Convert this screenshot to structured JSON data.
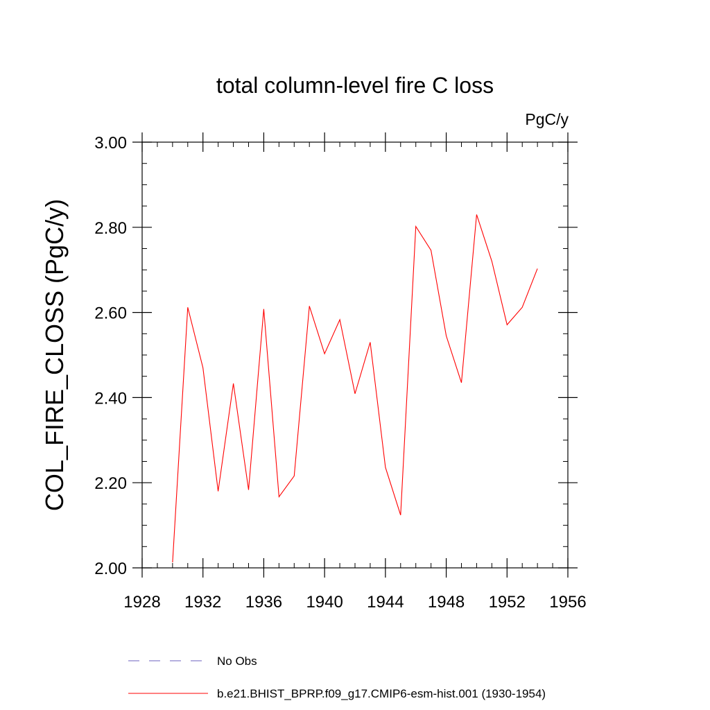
{
  "chart_data": {
    "type": "line",
    "title": "total column-level fire C loss",
    "units_label": "PgC/y",
    "ylabel": "COL_FIRE_CLOSS  (PgC/y)",
    "xlabel": "",
    "xlim": [
      1928,
      1956
    ],
    "ylim": [
      2.0,
      3.0
    ],
    "x_ticks": [
      1928,
      1932,
      1936,
      1940,
      1944,
      1948,
      1952,
      1956
    ],
    "x_tick_labels": [
      "1928",
      "1932",
      "1936",
      "1940",
      "1944",
      "1948",
      "1952",
      "1956"
    ],
    "y_ticks": [
      2.0,
      2.2,
      2.4,
      2.6,
      2.8,
      3.0
    ],
    "y_tick_labels": [
      "2.00",
      "2.20",
      "2.40",
      "2.60",
      "2.80",
      "3.00"
    ],
    "grid": false,
    "series": [
      {
        "name": "b.e21.BHIST_BPRP.f09_g17.CMIP6-esm-hist.001 (1930-1954)",
        "color": "#ff0000",
        "style": "solid",
        "x": [
          1930,
          1931,
          1932,
          1933,
          1934,
          1935,
          1936,
          1937,
          1938,
          1939,
          1940,
          1941,
          1942,
          1943,
          1944,
          1945,
          1946,
          1947,
          1948,
          1949,
          1950,
          1951,
          1952,
          1953,
          1954
        ],
        "values": [
          2.013,
          2.612,
          2.47,
          2.18,
          2.433,
          2.183,
          2.608,
          2.167,
          2.216,
          2.615,
          2.503,
          2.583,
          2.409,
          2.53,
          2.236,
          2.124,
          2.802,
          2.746,
          2.545,
          2.435,
          2.83,
          2.72,
          2.571,
          2.612,
          2.703
        ]
      }
    ],
    "legend": {
      "placement": "bottom-left",
      "entries": [
        {
          "label": "No Obs",
          "color": "#6b5fbf",
          "style": "dashed"
        },
        {
          "label": "b.e21.BHIST_BPRP.f09_g17.CMIP6-esm-hist.001 (1930-1954)",
          "color": "#ff0000",
          "style": "solid"
        }
      ]
    }
  }
}
